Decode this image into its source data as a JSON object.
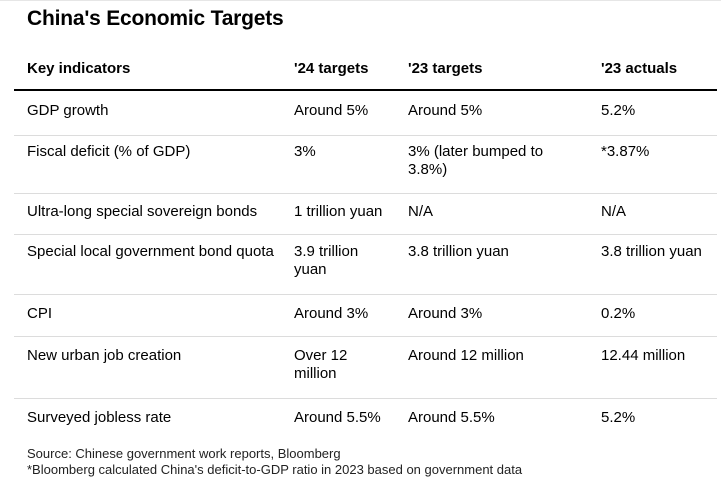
{
  "title": "China's Economic Targets",
  "table": {
    "headers": [
      "Key indicators",
      "'24 targets",
      "'23 targets",
      "'23 actuals"
    ],
    "rows": [
      [
        "GDP growth",
        "Around 5%",
        "Around 5%",
        "5.2%"
      ],
      [
        "Fiscal deficit (% of GDP)",
        "3%",
        "3% (later bumped to 3.8%)",
        "*3.87%"
      ],
      [
        "Ultra-long special sovereign bonds",
        "1 trillion yuan",
        "N/A",
        "N/A"
      ],
      [
        "Special local government bond quota",
        "3.9 trillion yuan",
        "3.8 trillion yuan",
        "3.8 trillion yuan"
      ],
      [
        "CPI",
        "Around 3%",
        "Around 3%",
        "0.2%"
      ],
      [
        "New urban job creation",
        "Over 12 million",
        "Around 12 million",
        "12.44 million"
      ],
      [
        "Surveyed jobless rate",
        "Around 5.5%",
        "Around 5.5%",
        "5.2%"
      ]
    ]
  },
  "footnotes": {
    "source": "Source: Chinese government work reports, Bloomberg",
    "note": "*Bloomberg calculated China's deficit-to-GDP ratio in 2023 based on government data"
  }
}
